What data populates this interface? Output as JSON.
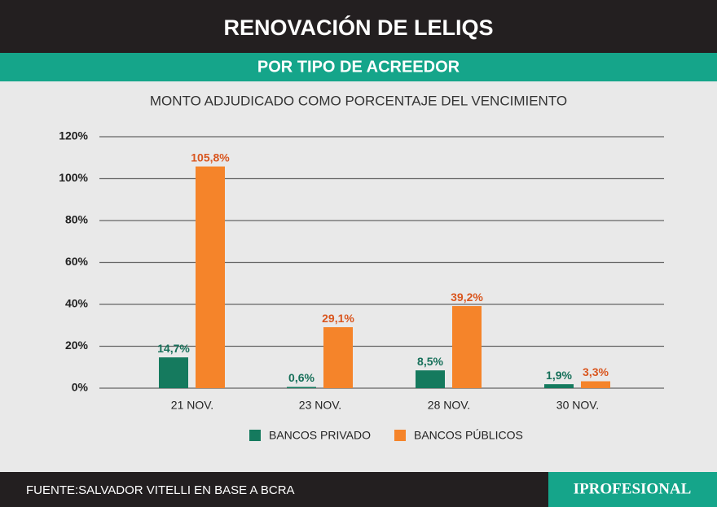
{
  "chart_data": {
    "type": "bar",
    "title": "RENOVACIÓN DE LELIQS",
    "subtitle": "POR TIPO DE ACREEDOR",
    "y_label": "MONTO ADJUDICADO COMO PORCENTAJE DEL VENCIMIENTO",
    "categories": [
      "21 NOV.",
      "23 NOV.",
      "28 NOV.",
      "30 NOV."
    ],
    "series": [
      {
        "name": "BANCOS PRIVADO",
        "color": "#157a5e",
        "label_color": "#17705a",
        "values": [
          14.7,
          0.6,
          8.5,
          1.9
        ],
        "value_labels": [
          "14,7%",
          "0,6%",
          "8,5%",
          "1,9%"
        ]
      },
      {
        "name": "BANCOS PÚBLICOS",
        "color": "#f5842a",
        "label_color": "#d9561f",
        "values": [
          105.8,
          29.1,
          39.2,
          3.3
        ],
        "value_labels": [
          "105,8%",
          "29,1%",
          "39,2%",
          "3,3%"
        ]
      }
    ],
    "ylim": [
      0,
      120
    ],
    "yticks": [
      {
        "value": 0,
        "label": "0%"
      },
      {
        "value": 20,
        "label": "20%"
      },
      {
        "value": 40,
        "label": "40%"
      },
      {
        "value": 60,
        "label": "60%"
      },
      {
        "value": 80,
        "label": "80%"
      },
      {
        "value": 100,
        "label": "100%"
      },
      {
        "value": 120,
        "label": "120%"
      }
    ],
    "grid": true,
    "source": "FUENTE:SALVADOR VITELLI EN BASE A BCRA",
    "brand": "IPROFESIONAL"
  }
}
